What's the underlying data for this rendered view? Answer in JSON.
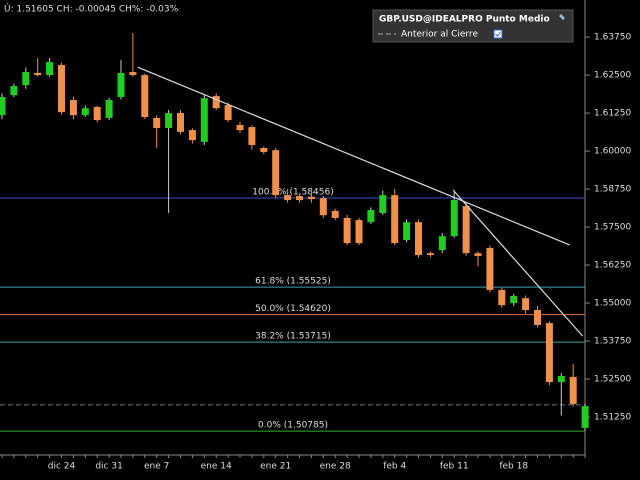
{
  "header": "Ú: 1.51605 CH: -0.00045 CH%: -0.03%",
  "legend": {
    "title": "GBP.USD@IDEALPRO Punto Medio",
    "item": "Anterior al Cierre"
  },
  "chart_data": {
    "type": "candlestick",
    "categories": [
      null,
      null,
      null,
      null,
      null,
      "dic 24",
      null,
      null,
      null,
      "dic 31",
      null,
      null,
      null,
      "ene 7",
      null,
      null,
      null,
      null,
      "ene 14",
      null,
      null,
      null,
      null,
      "ene 21",
      null,
      null,
      null,
      null,
      "ene 28",
      null,
      null,
      null,
      null,
      "feb 4",
      null,
      null,
      null,
      null,
      "feb 11",
      null,
      null,
      null,
      null,
      "feb 18",
      null,
      null,
      null,
      null,
      null,
      null
    ],
    "open": [
      1.6118,
      1.6184,
      1.6217,
      1.6257,
      1.625,
      1.6283,
      1.6168,
      1.6118,
      1.6145,
      1.6109,
      1.6178,
      1.626,
      1.625,
      1.6109,
      1.6076,
      1.6125,
      1.6069,
      1.603,
      1.6181,
      1.6151,
      1.6086,
      1.6079,
      1.601,
      1.6003,
      1.5855,
      1.5852,
      1.585,
      1.5845,
      1.5803,
      1.578,
      1.5773,
      1.5766,
      1.5796,
      1.5855,
      1.5707,
      1.5766,
      1.5664,
      1.5674,
      1.572,
      1.5819,
      1.5664,
      1.5681,
      1.5543,
      1.55,
      1.5516,
      1.5477,
      1.5434,
      1.524,
      1.5257,
      1.5089
    ],
    "high": [
      1.619,
      1.6222,
      1.6275,
      1.6306,
      1.6306,
      1.629,
      1.618,
      1.615,
      1.615,
      1.6175,
      1.6299,
      1.6388,
      1.6255,
      1.6118,
      1.6135,
      1.6135,
      1.6075,
      1.6185,
      1.619,
      1.616,
      1.6095,
      1.6085,
      1.6015,
      1.601,
      1.5875,
      1.586,
      1.586,
      1.5852,
      1.581,
      1.579,
      1.578,
      1.5815,
      1.587,
      1.5875,
      1.5775,
      1.5775,
      1.567,
      1.573,
      1.5866,
      1.583,
      1.567,
      1.569,
      1.555,
      1.553,
      1.5525,
      1.549,
      1.544,
      1.527,
      1.53,
      1.5168
    ],
    "low": [
      1.6105,
      1.6178,
      1.6205,
      1.6245,
      1.6245,
      1.612,
      1.6105,
      1.6112,
      1.6095,
      1.6102,
      1.617,
      1.6245,
      1.6105,
      1.601,
      1.5796,
      1.6055,
      1.6025,
      1.602,
      1.6135,
      1.6095,
      1.606,
      1.6005,
      1.599,
      1.5845,
      1.583,
      1.583,
      1.583,
      1.578,
      1.5773,
      1.569,
      1.569,
      1.576,
      1.579,
      1.569,
      1.57,
      1.565,
      1.565,
      1.5665,
      1.5715,
      1.5655,
      1.562,
      1.5535,
      1.5485,
      1.549,
      1.5465,
      1.542,
      1.523,
      1.513,
      1.516,
      1.508
    ],
    "close": [
      1.6178,
      1.6214,
      1.626,
      1.625,
      1.6293,
      1.6128,
      1.6118,
      1.6141,
      1.6102,
      1.6168,
      1.6257,
      1.625,
      1.6112,
      1.6076,
      1.6125,
      1.6063,
      1.6036,
      1.6174,
      1.6141,
      1.6102,
      1.6069,
      1.602,
      1.5997,
      1.5855,
      1.5839,
      1.5839,
      1.5842,
      1.5789,
      1.578,
      1.5697,
      1.5697,
      1.5806,
      1.5855,
      1.5697,
      1.5766,
      1.5658,
      1.5658,
      1.572,
      1.5839,
      1.5664,
      1.5655,
      1.5543,
      1.5493,
      1.5523,
      1.5477,
      1.5428,
      1.524,
      1.526,
      1.5168,
      1.5161
    ],
    "up_color": "#22cc22",
    "down_color": "#f0904a",
    "ylim": [
      1.5,
      1.6497
    ],
    "yticks": [
      {
        "value": 1.6375,
        "label": "1.63750"
      },
      {
        "value": 1.625,
        "label": "1.62500"
      },
      {
        "value": 1.6125,
        "label": "1.61250"
      },
      {
        "value": 1.6,
        "label": "1.60000"
      },
      {
        "value": 1.5875,
        "label": "1.58750"
      },
      {
        "value": 1.575,
        "label": "1.57500"
      },
      {
        "value": 1.5625,
        "label": "1.56250"
      },
      {
        "value": 1.55,
        "label": "1.55000"
      },
      {
        "value": 1.5375,
        "label": "1.53750"
      },
      {
        "value": 1.525,
        "label": "1.52500"
      },
      {
        "value": 1.5125,
        "label": "1.51250"
      }
    ],
    "prev_close": 1.5165,
    "fib_levels": [
      {
        "label": "100.0% (1.58456)",
        "value": 1.58456,
        "color": "#3050c0"
      },
      {
        "label": "61.8% (1.55525)",
        "value": 1.55525,
        "color": "#40a0b0"
      },
      {
        "label": "50.0% (1.54620)",
        "value": 1.5462,
        "color": "#e07040"
      },
      {
        "label": "38.2% (1.53715)",
        "value": 1.53715,
        "color": "#40a0b0"
      },
      {
        "label": "0.0% (1.50785)",
        "value": 1.50785,
        "color": "#30b030"
      }
    ],
    "trendlines": [
      {
        "x": [
          11.4,
          47.7
        ],
        "y": [
          1.6276,
          1.5691
        ]
      },
      {
        "x": [
          37.9,
          48.8
        ],
        "y": [
          1.5872,
          1.5391
        ]
      }
    ]
  }
}
